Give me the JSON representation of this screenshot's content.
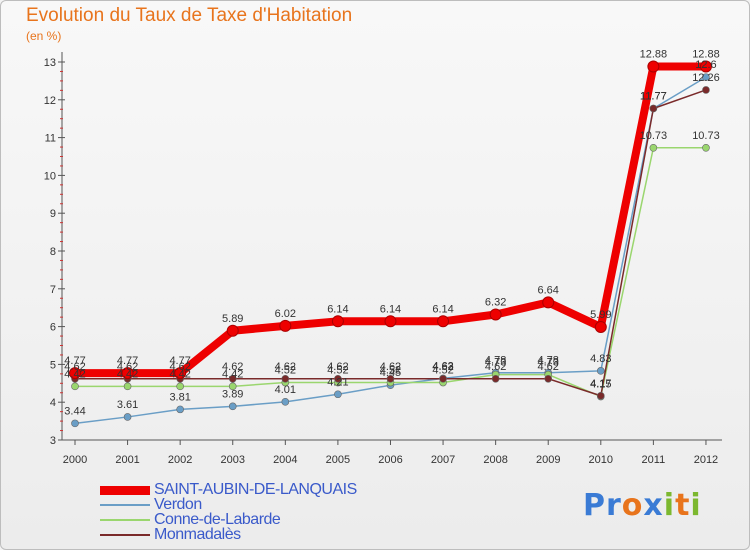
{
  "title": "Evolution du Taux de Taxe d'Habitation",
  "unit": "(en %)",
  "logo": "Proxiti",
  "chart_data": {
    "type": "line",
    "title": "Evolution du Taux de Taxe d'Habitation",
    "ylabel": "(en %)",
    "xlabel": "",
    "categories": [
      "2000",
      "2001",
      "2002",
      "2003",
      "2004",
      "2005",
      "2006",
      "2007",
      "2008",
      "2009",
      "2010",
      "2011",
      "2012"
    ],
    "ylim": [
      3,
      13
    ],
    "yticks": [
      3,
      4,
      5,
      6,
      7,
      8,
      9,
      10,
      11,
      12,
      13
    ],
    "grid": false,
    "legend_position": "bottom-left",
    "series": [
      {
        "name": "SAINT-AUBIN-DE-LANQUAIS",
        "color": "#ee0000",
        "values": [
          4.77,
          4.77,
          4.77,
          5.89,
          6.02,
          6.14,
          6.14,
          6.14,
          6.32,
          6.64,
          5.99,
          12.88,
          12.88
        ],
        "labels": [
          "4.77",
          "4.77",
          "4.77",
          "5.89",
          "6.02",
          "6.14",
          "6.14",
          "6.14",
          "6.32",
          "6.64",
          "5.99",
          "12.88",
          "12.88"
        ]
      },
      {
        "name": "Verdon",
        "color": "#6a9ec6",
        "values": [
          3.44,
          3.61,
          3.81,
          3.89,
          4.01,
          4.21,
          4.45,
          4.63,
          4.78,
          4.78,
          4.83,
          11.77,
          12.6
        ],
        "labels": [
          "3.44",
          "3.61",
          "3.81",
          "3.89",
          "4.01",
          "4.21",
          "4.45",
          "4.63",
          "4.78",
          "4.78",
          "4.83",
          "11.77",
          "12.6"
        ]
      },
      {
        "name": "Conne-de-Labarde",
        "color": "#9ad66e",
        "values": [
          4.42,
          4.42,
          4.42,
          4.42,
          4.52,
          4.52,
          4.52,
          4.52,
          4.73,
          4.73,
          4.15,
          10.73,
          10.73
        ],
        "labels": [
          "4.42",
          "4.42",
          "4.42",
          "4.42",
          "4.52",
          "4.52",
          "4.52",
          "4.52",
          "4.73",
          "4.73",
          "4.15",
          "10.73",
          "10.73"
        ]
      },
      {
        "name": "Monmadalès",
        "color": "#7a2a2a",
        "values": [
          4.62,
          4.62,
          4.62,
          4.62,
          4.62,
          4.62,
          4.62,
          4.62,
          4.62,
          4.62,
          4.17,
          11.77,
          12.26
        ],
        "labels": [
          "4.62",
          "4.62",
          "4.62",
          "4.62",
          "4.62",
          "4.62",
          "4.62",
          "4.62",
          "4.62",
          "4.62",
          "4.17",
          "11.77",
          "12.26"
        ]
      }
    ]
  },
  "colors": {
    "title": "#e8741c",
    "axis": "#555555",
    "legend_text": "#3a5aca",
    "logo_letters": [
      "#3a7bd5",
      "#3a7bd5",
      "#e8741c",
      "#3a7bd5",
      "#7cb82f",
      "#e8741c",
      "#7cb82f"
    ]
  }
}
